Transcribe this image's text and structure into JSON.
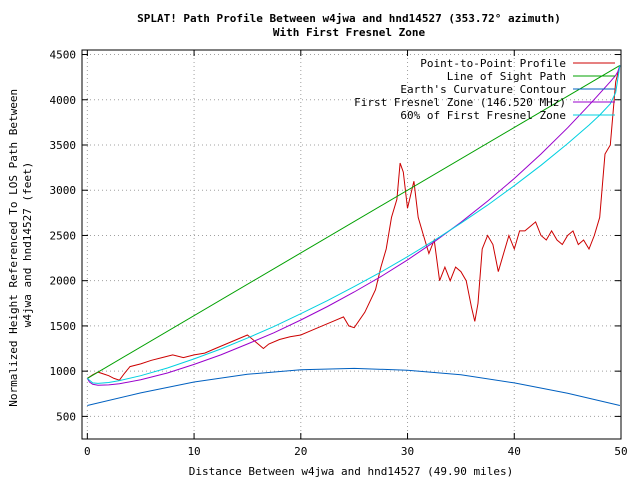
{
  "chart_data": {
    "type": "line",
    "title": "SPLAT! Path Profile Between w4jwa and hnd14527 (353.72° azimuth)",
    "subtitle": "With First Fresnel Zone",
    "xlabel": "Distance Between w4jwa and hnd14527 (49.90 miles)",
    "ylabel": "Normalized Height Referenced To LOS Path Between w4jwa and hnd14527 (feet)",
    "xlim": [
      -0.5,
      50
    ],
    "ylim": [
      250,
      4550
    ],
    "xticks": [
      0,
      10,
      20,
      30,
      40,
      50
    ],
    "yticks": [
      500,
      1000,
      1500,
      2000,
      2500,
      3000,
      3500,
      4000,
      4500
    ],
    "grid": true,
    "legend_position": "top-right",
    "series": [
      {
        "name": "Point-to-Point Profile",
        "color": "#cc0000",
        "x": [
          0,
          0.5,
          1,
          1.5,
          2,
          2.5,
          3,
          3.5,
          4,
          5,
          6,
          7,
          8,
          9,
          10,
          11,
          12,
          13,
          14,
          15,
          16,
          16.5,
          17,
          18,
          19,
          20,
          21,
          22,
          23,
          24,
          24.5,
          25,
          26,
          27,
          27.5,
          28,
          28.5,
          29,
          29.3,
          29.6,
          30,
          30.3,
          30.6,
          31,
          31.5,
          32,
          32.5,
          33,
          33.5,
          34,
          34.5,
          35,
          35.5,
          36,
          36.3,
          36.6,
          37,
          37.5,
          38,
          38.5,
          39,
          39.5,
          40,
          40.5,
          41,
          41.5,
          42,
          42.5,
          43,
          43.5,
          44,
          44.5,
          45,
          45.5,
          46,
          46.5,
          47,
          47.5,
          48,
          48.5,
          49,
          49.5,
          49.9
        ],
        "y": [
          920,
          960,
          990,
          970,
          950,
          920,
          900,
          980,
          1050,
          1080,
          1120,
          1150,
          1180,
          1150,
          1180,
          1200,
          1250,
          1300,
          1350,
          1400,
          1300,
          1250,
          1300,
          1350,
          1380,
          1400,
          1450,
          1500,
          1550,
          1600,
          1500,
          1480,
          1650,
          1900,
          2150,
          2350,
          2700,
          2900,
          3300,
          3200,
          2800,
          2950,
          3100,
          2700,
          2500,
          2300,
          2450,
          2000,
          2150,
          2000,
          2150,
          2100,
          2000,
          1700,
          1550,
          1750,
          2350,
          2500,
          2400,
          2100,
          2300,
          2500,
          2350,
          2550,
          2550,
          2600,
          2650,
          2500,
          2450,
          2550,
          2450,
          2400,
          2500,
          2550,
          2400,
          2450,
          2350,
          2500,
          2700,
          3400,
          3500,
          4200,
          4380
        ]
      },
      {
        "name": "Line of Sight Path",
        "color": "#00a000",
        "x": [
          0,
          49.9
        ],
        "y": [
          920,
          4380
        ]
      },
      {
        "name": "Earth's Curvature Contour",
        "color": "#0060c0",
        "x": [
          0,
          5,
          10,
          15,
          20,
          25,
          30,
          35,
          40,
          45,
          49.9
        ],
        "y": [
          620,
          760,
          880,
          965,
          1015,
          1030,
          1010,
          960,
          870,
          755,
          620
        ]
      },
      {
        "name": "First Fresnel Zone (146.520 MHz)",
        "color": "#9900cc",
        "x": [
          0,
          0.2,
          0.5,
          1,
          2,
          3,
          5,
          7.5,
          10,
          12.5,
          15,
          17.5,
          20,
          22.5,
          25,
          27.5,
          30,
          32.5,
          35,
          37.5,
          40,
          42.5,
          45,
          47,
          48,
          49,
          49.5,
          49.7,
          49.9
        ],
        "y": [
          920,
          880,
          855,
          845,
          848,
          860,
          905,
          980,
          1075,
          1180,
          1300,
          1425,
          1565,
          1715,
          1875,
          2045,
          2230,
          2430,
          2645,
          2880,
          3130,
          3400,
          3690,
          3940,
          4070,
          4200,
          4270,
          4310,
          4380
        ]
      },
      {
        "name": "60% of First Fresnel Zone",
        "color": "#00d0e0",
        "x": [
          0,
          0.5,
          1,
          2,
          3,
          5,
          7.5,
          10,
          12.5,
          15,
          17.5,
          20,
          22.5,
          25,
          27.5,
          30,
          32.5,
          35,
          37.5,
          40,
          42.5,
          45,
          47,
          48,
          49,
          49.5,
          49.9
        ],
        "y": [
          920,
          870,
          865,
          875,
          895,
          950,
          1035,
          1135,
          1245,
          1365,
          1495,
          1635,
          1780,
          1935,
          2095,
          2265,
          2445,
          2635,
          2835,
          3050,
          3275,
          3515,
          3720,
          3830,
          3955,
          4080,
          4380
        ]
      }
    ]
  }
}
